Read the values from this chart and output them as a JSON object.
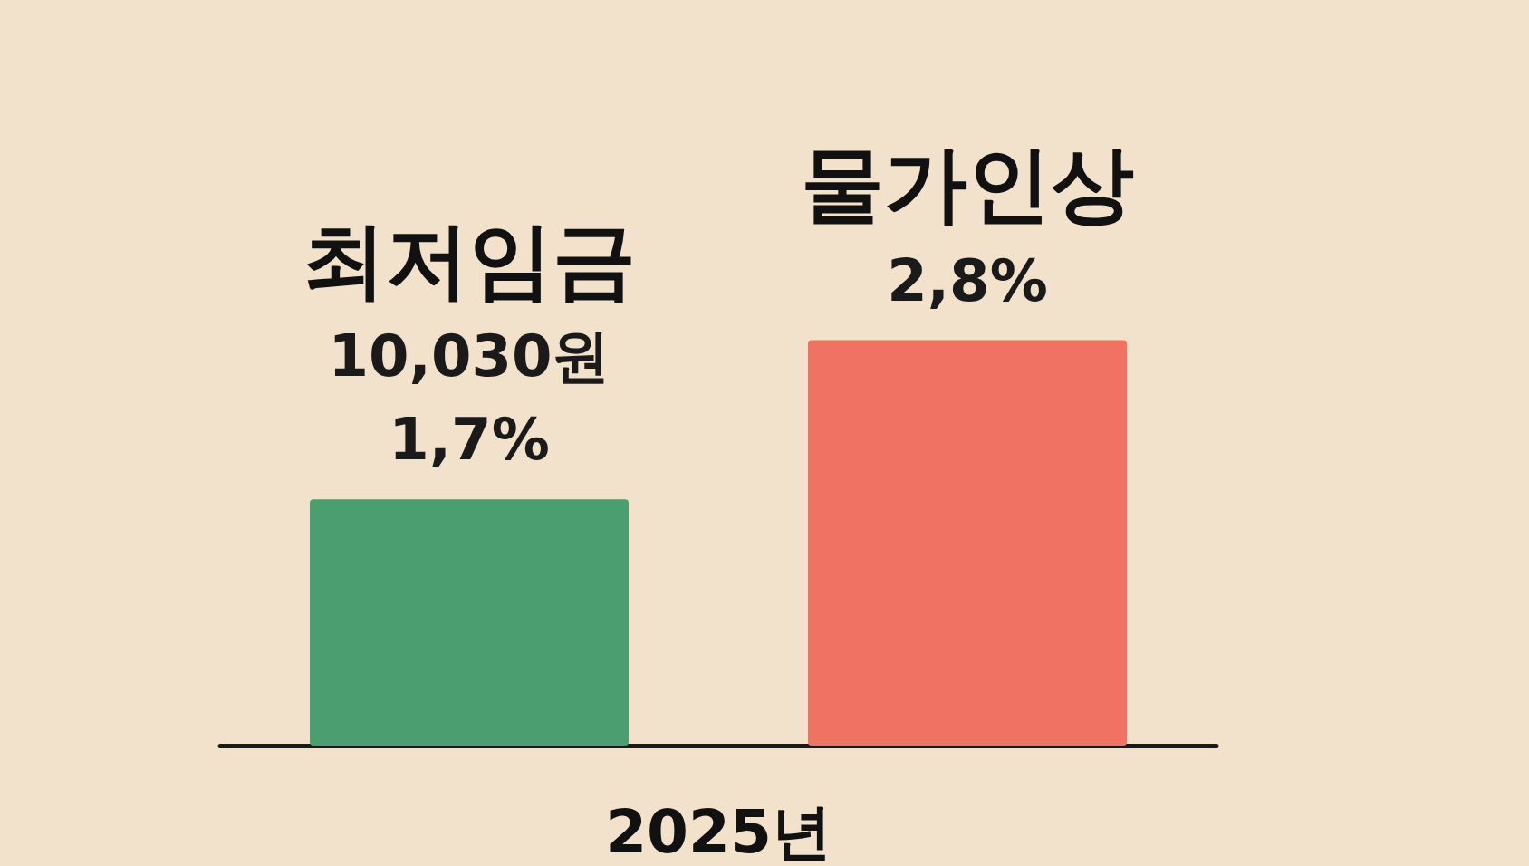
{
  "chart_data": {
    "type": "bar",
    "xlabel": "2025년",
    "categories": [
      "최저임금",
      "물가인상"
    ],
    "values": [
      1.7,
      2.8
    ],
    "colors": [
      "#4a9e6f",
      "#f07262"
    ],
    "value_labels": [
      "1,7%",
      "2,8%"
    ],
    "annotations": [
      "10,030원"
    ]
  }
}
